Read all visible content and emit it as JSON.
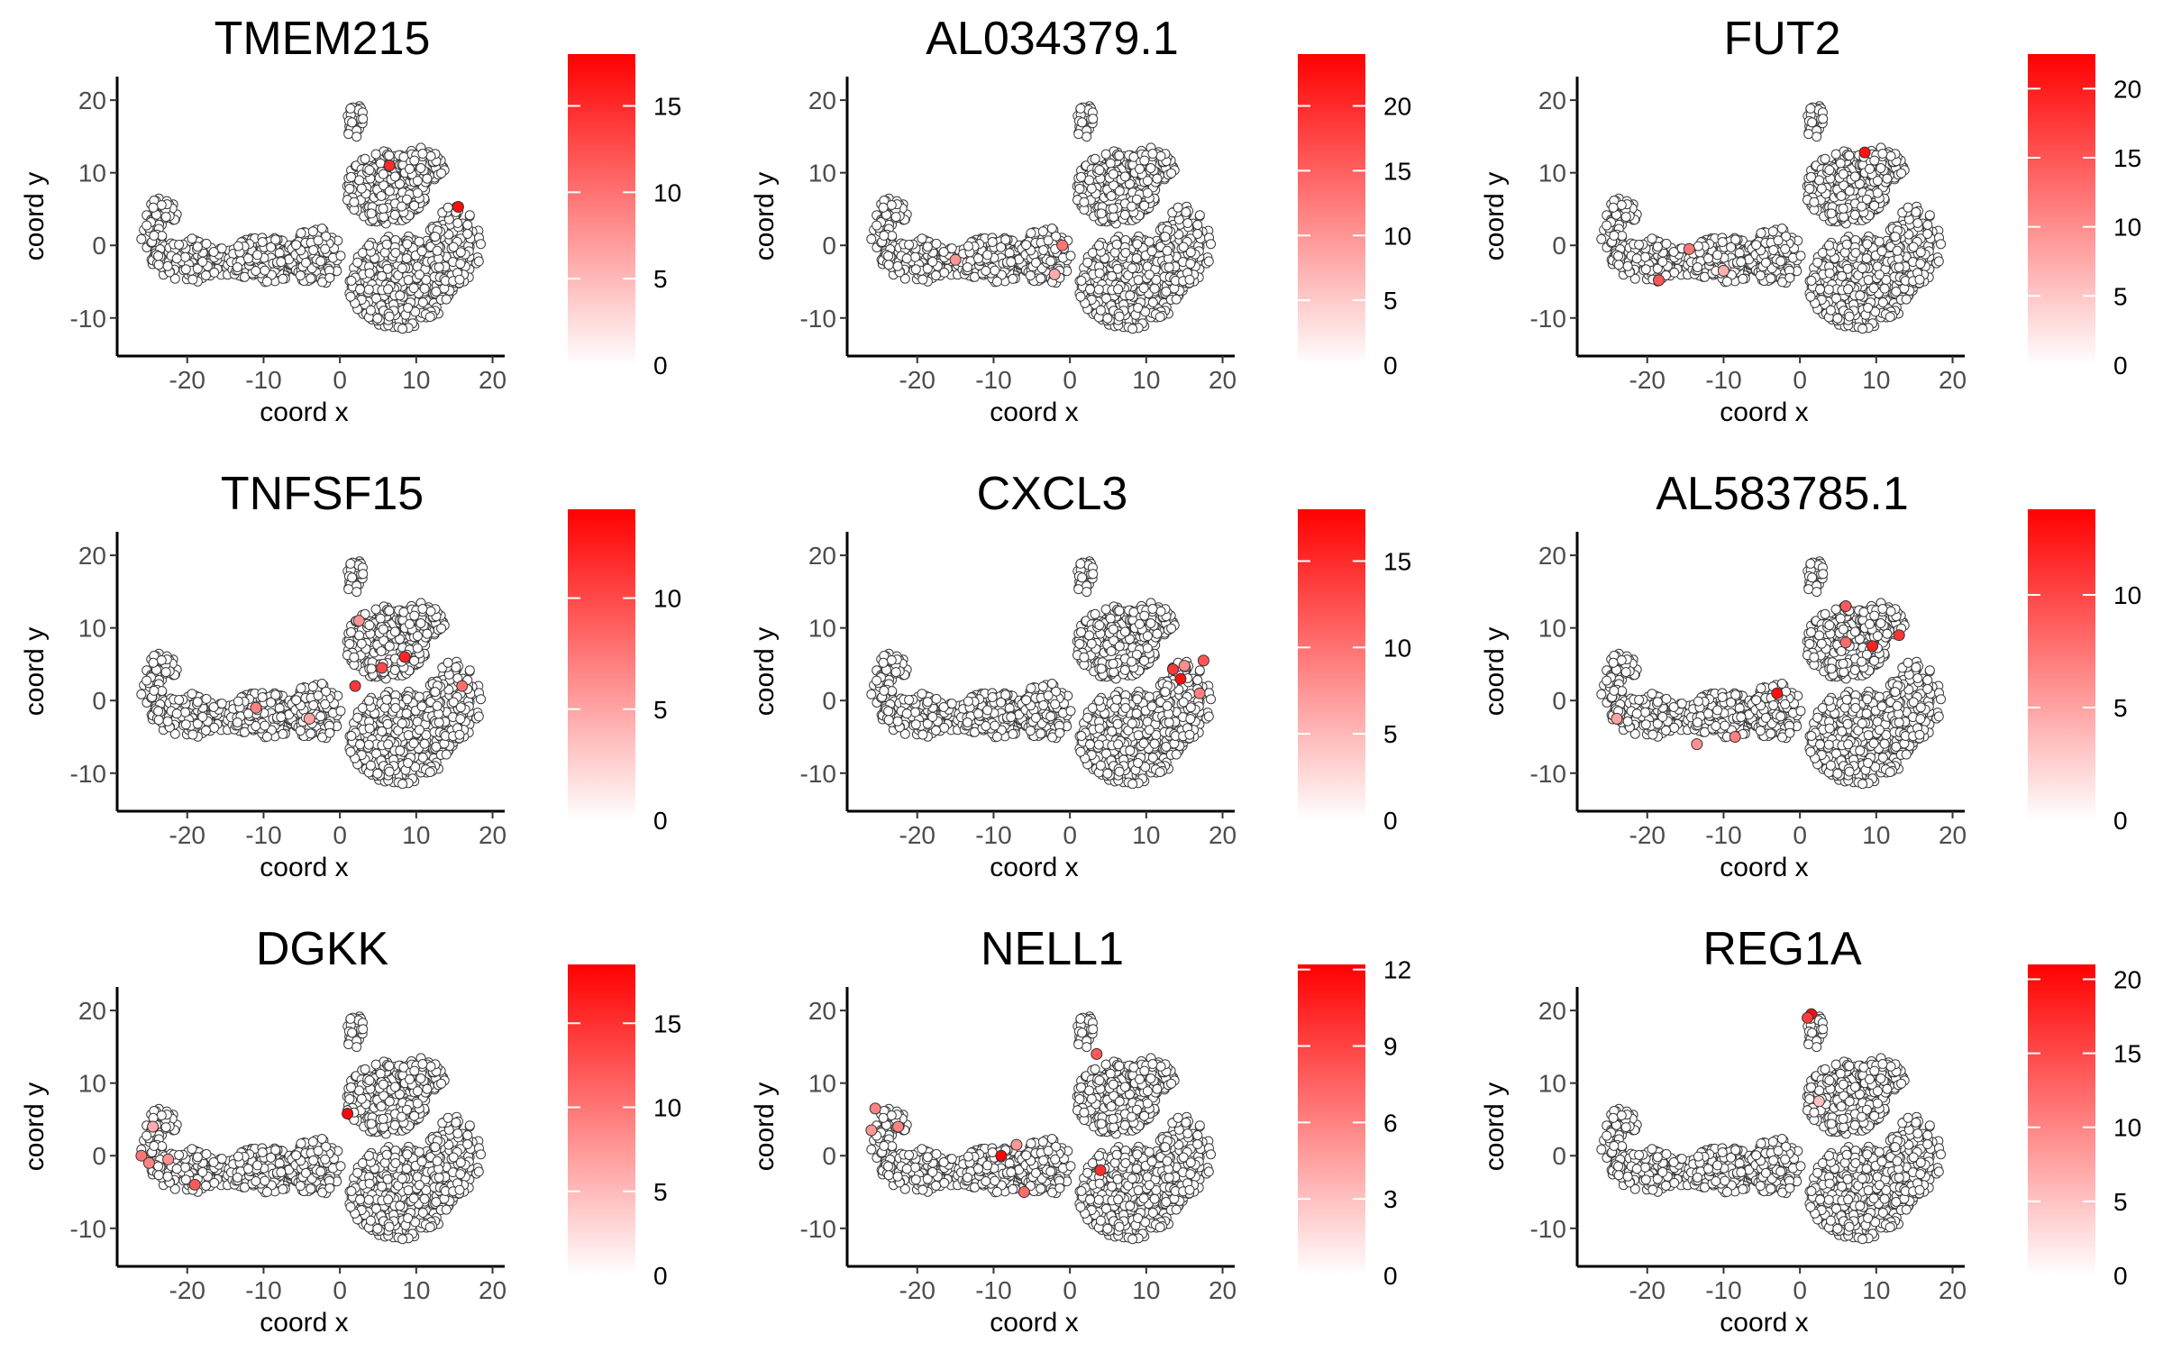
{
  "chart_data": [
    {
      "type": "scatter",
      "title": "TMEM215",
      "xlabel": "coord x",
      "ylabel": "coord y",
      "xlim": [
        -28,
        21
      ],
      "ylim": [
        -14,
        22
      ],
      "xticks": [
        -20,
        -10,
        0,
        10,
        20
      ],
      "yticks": [
        -10,
        0,
        10,
        20
      ],
      "legend": {
        "position": "right",
        "min": 0,
        "max": 18,
        "ticks": [
          0,
          5,
          10,
          15
        ],
        "low_color": "#ffffff",
        "high_color": "#ff0000"
      },
      "highlights": [
        {
          "x": 6.5,
          "y": 11,
          "value": 15
        },
        {
          "x": 15.5,
          "y": 5.3,
          "value": 17
        }
      ]
    },
    {
      "type": "scatter",
      "title": "AL034379.1",
      "xlabel": "coord x",
      "ylabel": "coord y",
      "xlim": [
        -28,
        21
      ],
      "ylim": [
        -14,
        22
      ],
      "xticks": [
        -20,
        -10,
        0,
        10,
        20
      ],
      "yticks": [
        -10,
        0,
        10,
        20
      ],
      "legend": {
        "position": "right",
        "min": 0,
        "max": 24,
        "ticks": [
          0,
          5,
          10,
          15,
          20
        ],
        "low_color": "#ffffff",
        "high_color": "#ff0000"
      },
      "highlights": [
        {
          "x": -15,
          "y": -2,
          "value": 10
        },
        {
          "x": -1,
          "y": 0,
          "value": 13
        },
        {
          "x": -2,
          "y": -4,
          "value": 8
        }
      ]
    },
    {
      "type": "scatter",
      "title": "FUT2",
      "xlabel": "coord x",
      "ylabel": "coord y",
      "xlim": [
        -28,
        21
      ],
      "ylim": [
        -14,
        22
      ],
      "xticks": [
        -20,
        -10,
        0,
        10,
        20
      ],
      "yticks": [
        -10,
        0,
        10,
        20
      ],
      "legend": {
        "position": "right",
        "min": 0,
        "max": 22.5,
        "ticks": [
          0,
          5,
          10,
          15,
          20
        ],
        "low_color": "#ffffff",
        "high_color": "#ff0000"
      },
      "highlights": [
        {
          "x": 8.5,
          "y": 12.8,
          "value": 21
        },
        {
          "x": -14.5,
          "y": -0.5,
          "value": 12
        },
        {
          "x": -18.5,
          "y": -4.8,
          "value": 15
        },
        {
          "x": -10,
          "y": -3.5,
          "value": 7
        }
      ]
    },
    {
      "type": "scatter",
      "title": "TNFSF15",
      "xlabel": "coord x",
      "ylabel": "coord y",
      "xlim": [
        -28,
        21
      ],
      "ylim": [
        -14,
        22
      ],
      "xticks": [
        -20,
        -10,
        0,
        10,
        20
      ],
      "yticks": [
        -10,
        0,
        10,
        20
      ],
      "legend": {
        "position": "right",
        "min": 0,
        "max": 14,
        "ticks": [
          0,
          5,
          10
        ],
        "low_color": "#ffffff",
        "high_color": "#ff0000"
      },
      "highlights": [
        {
          "x": 8.5,
          "y": 6,
          "value": 12
        },
        {
          "x": 5.5,
          "y": 4.5,
          "value": 10
        },
        {
          "x": 2,
          "y": 2,
          "value": 11
        },
        {
          "x": 16,
          "y": 2,
          "value": 8
        },
        {
          "x": -11,
          "y": -1,
          "value": 7
        },
        {
          "x": -4,
          "y": -2.5,
          "value": 5
        },
        {
          "x": 2.5,
          "y": 11,
          "value": 6
        }
      ]
    },
    {
      "type": "scatter",
      "title": "CXCL3",
      "xlabel": "coord x",
      "ylabel": "coord y",
      "xlim": [
        -28,
        21
      ],
      "ylim": [
        -14,
        22
      ],
      "xticks": [
        -20,
        -10,
        0,
        10,
        20
      ],
      "yticks": [
        -10,
        0,
        10,
        20
      ],
      "legend": {
        "position": "right",
        "min": 0,
        "max": 18,
        "ticks": [
          0,
          5,
          10,
          15
        ],
        "low_color": "#ffffff",
        "high_color": "#ff0000"
      },
      "highlights": [
        {
          "x": 13.5,
          "y": 4.3,
          "value": 14
        },
        {
          "x": 14.5,
          "y": 3,
          "value": 17
        },
        {
          "x": 17.5,
          "y": 5.5,
          "value": 12
        },
        {
          "x": 17,
          "y": 1,
          "value": 9
        },
        {
          "x": 15,
          "y": 4.8,
          "value": 8
        }
      ]
    },
    {
      "type": "scatter",
      "title": "AL583785.1",
      "xlabel": "coord x",
      "ylabel": "coord y",
      "xlim": [
        -28,
        21
      ],
      "ylim": [
        -14,
        22
      ],
      "xticks": [
        -20,
        -10,
        0,
        10,
        20
      ],
      "yticks": [
        -10,
        0,
        10,
        20
      ],
      "legend": {
        "position": "right",
        "min": 0,
        "max": 13.8,
        "ticks": [
          0,
          5,
          10
        ],
        "low_color": "#ffffff",
        "high_color": "#ff0000"
      },
      "highlights": [
        {
          "x": -3,
          "y": 1,
          "value": 13
        },
        {
          "x": 9.5,
          "y": 7.5,
          "value": 12
        },
        {
          "x": 13,
          "y": 9,
          "value": 11
        },
        {
          "x": 6,
          "y": 13,
          "value": 9
        },
        {
          "x": 6,
          "y": 8,
          "value": 8
        },
        {
          "x": -8.5,
          "y": -5,
          "value": 7
        },
        {
          "x": -13.5,
          "y": -6,
          "value": 6
        },
        {
          "x": -24,
          "y": -2.5,
          "value": 5
        }
      ]
    },
    {
      "type": "scatter",
      "title": "DGKK",
      "xlabel": "coord x",
      "ylabel": "coord y",
      "xlim": [
        -28,
        21
      ],
      "ylim": [
        -14,
        22
      ],
      "xticks": [
        -20,
        -10,
        0,
        10,
        20
      ],
      "yticks": [
        -10,
        0,
        10,
        20
      ],
      "legend": {
        "position": "right",
        "min": 0,
        "max": 18.5,
        "ticks": [
          0,
          5,
          10,
          15
        ],
        "low_color": "#ffffff",
        "high_color": "#ff0000"
      },
      "highlights": [
        {
          "x": 1,
          "y": 5.8,
          "value": 18
        },
        {
          "x": -26,
          "y": 0,
          "value": 10
        },
        {
          "x": -25,
          "y": -1,
          "value": 9
        },
        {
          "x": -22.5,
          "y": -0.5,
          "value": 8
        },
        {
          "x": -19,
          "y": -4,
          "value": 12
        },
        {
          "x": -24.5,
          "y": 4,
          "value": 6
        }
      ]
    },
    {
      "type": "scatter",
      "title": "NELL1",
      "xlabel": "coord x",
      "ylabel": "coord y",
      "xlim": [
        -28,
        21
      ],
      "ylim": [
        -14,
        22
      ],
      "xticks": [
        -20,
        -10,
        0,
        10,
        20
      ],
      "yticks": [
        -10,
        0,
        10,
        20
      ],
      "legend": {
        "position": "right",
        "min": 0,
        "max": 12.2,
        "ticks": [
          0,
          3,
          6,
          9,
          12
        ],
        "low_color": "#ffffff",
        "high_color": "#ff0000"
      },
      "highlights": [
        {
          "x": -9,
          "y": 0,
          "value": 12
        },
        {
          "x": -25.5,
          "y": 6.5,
          "value": 6
        },
        {
          "x": -26,
          "y": 3.5,
          "value": 5
        },
        {
          "x": -22.5,
          "y": 4,
          "value": 6
        },
        {
          "x": 4,
          "y": -2,
          "value": 10
        },
        {
          "x": 3.5,
          "y": 14,
          "value": 8
        },
        {
          "x": -6,
          "y": -5,
          "value": 7
        },
        {
          "x": -7,
          "y": 1.5,
          "value": 5
        }
      ]
    },
    {
      "type": "scatter",
      "title": "REG1A",
      "xlabel": "coord x",
      "ylabel": "coord y",
      "xlim": [
        -28,
        21
      ],
      "ylim": [
        -14,
        22
      ],
      "xticks": [
        -20,
        -10,
        0,
        10,
        20
      ],
      "yticks": [
        -10,
        0,
        10,
        20
      ],
      "legend": {
        "position": "right",
        "min": 0,
        "max": 21,
        "ticks": [
          0,
          5,
          10,
          15,
          20
        ],
        "low_color": "#ffffff",
        "high_color": "#ff0000"
      },
      "highlights": [
        {
          "x": 1.5,
          "y": 19.5,
          "value": 20
        },
        {
          "x": 1,
          "y": 19,
          "value": 16
        },
        {
          "x": 2.5,
          "y": 7.5,
          "value": 5
        }
      ]
    }
  ]
}
